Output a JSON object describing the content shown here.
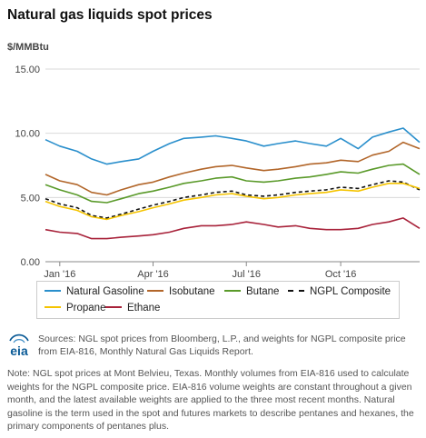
{
  "title": "Natural gas liquids spot prices",
  "unit_label": "$/MMBtu",
  "chart_data": {
    "type": "line",
    "title": "Natural gas liquids spot prices",
    "ylabel": "$/MMBtu",
    "xlabel": "",
    "ylim": [
      0,
      15
    ],
    "yticks": [
      "15.00",
      "10.00",
      "5.00",
      "0.00"
    ],
    "xlim": [
      "2016-01-01",
      "2016-12-31"
    ],
    "xticks": [
      {
        "label": "Jan '16",
        "date": "2016-01-15"
      },
      {
        "label": "Apr '16",
        "date": "2016-04-15"
      },
      {
        "label": "Jul '16",
        "date": "2016-07-15"
      },
      {
        "label": "Oct '16",
        "date": "2016-10-15"
      }
    ],
    "grid": "horizontal",
    "legend_position": "bottom",
    "x": [
      "2016-01-01",
      "2016-01-15",
      "2016-02-01",
      "2016-02-15",
      "2016-03-01",
      "2016-03-15",
      "2016-04-01",
      "2016-04-15",
      "2016-05-01",
      "2016-05-15",
      "2016-06-01",
      "2016-06-15",
      "2016-07-01",
      "2016-07-15",
      "2016-08-01",
      "2016-08-15",
      "2016-09-01",
      "2016-09-15",
      "2016-10-01",
      "2016-10-15",
      "2016-11-01",
      "2016-11-15",
      "2016-12-01",
      "2016-12-15",
      "2016-12-31"
    ],
    "series": [
      {
        "name": "Natural Gasoline",
        "color": "#2a8fcc",
        "dash": "solid",
        "values": [
          9.5,
          9.0,
          8.6,
          8.0,
          7.6,
          7.8,
          8.0,
          8.6,
          9.2,
          9.6,
          9.7,
          9.8,
          9.6,
          9.4,
          9.0,
          9.2,
          9.4,
          9.2,
          9.0,
          9.6,
          8.8,
          9.7,
          10.1,
          10.4,
          9.3
        ]
      },
      {
        "name": "Isobutane",
        "color": "#b2662a",
        "dash": "solid",
        "values": [
          6.8,
          6.3,
          6.0,
          5.4,
          5.2,
          5.6,
          6.0,
          6.2,
          6.6,
          6.9,
          7.2,
          7.4,
          7.5,
          7.3,
          7.1,
          7.2,
          7.4,
          7.6,
          7.7,
          7.9,
          7.8,
          8.3,
          8.6,
          9.3,
          8.8
        ]
      },
      {
        "name": "Butane",
        "color": "#5a9a2a",
        "dash": "solid",
        "values": [
          6.0,
          5.6,
          5.2,
          4.7,
          4.6,
          4.9,
          5.3,
          5.5,
          5.8,
          6.1,
          6.3,
          6.5,
          6.6,
          6.3,
          6.2,
          6.3,
          6.5,
          6.6,
          6.8,
          7.0,
          6.9,
          7.2,
          7.5,
          7.6,
          6.8
        ]
      },
      {
        "name": "NGPL Composite",
        "color": "#111111",
        "dash": "dashed",
        "values": [
          4.9,
          4.5,
          4.2,
          3.6,
          3.4,
          3.7,
          4.1,
          4.4,
          4.7,
          5.0,
          5.2,
          5.4,
          5.5,
          5.2,
          5.1,
          5.2,
          5.4,
          5.5,
          5.6,
          5.8,
          5.7,
          6.0,
          6.3,
          6.2,
          5.6
        ]
      },
      {
        "name": "Propane",
        "color": "#f5c400",
        "dash": "solid",
        "values": [
          4.7,
          4.3,
          4.0,
          3.5,
          3.3,
          3.6,
          3.9,
          4.2,
          4.5,
          4.8,
          5.0,
          5.2,
          5.3,
          5.1,
          4.9,
          5.0,
          5.2,
          5.3,
          5.4,
          5.6,
          5.5,
          5.8,
          6.1,
          6.1,
          5.7
        ]
      },
      {
        "name": "Ethane",
        "color": "#a8223a",
        "dash": "solid",
        "values": [
          2.5,
          2.3,
          2.2,
          1.8,
          1.8,
          1.9,
          2.0,
          2.1,
          2.3,
          2.6,
          2.8,
          2.8,
          2.9,
          3.1,
          2.9,
          2.7,
          2.8,
          2.6,
          2.5,
          2.5,
          2.6,
          2.9,
          3.1,
          3.4,
          2.6
        ]
      }
    ]
  },
  "legend": [
    {
      "label": "Natural Gasoline",
      "color": "#2a8fcc",
      "dash": "solid"
    },
    {
      "label": "Isobutane",
      "color": "#b2662a",
      "dash": "solid"
    },
    {
      "label": "Butane",
      "color": "#5a9a2a",
      "dash": "solid"
    },
    {
      "label": "NGPL Composite",
      "color": "#111111",
      "dash": "dashed"
    },
    {
      "label": "Propane",
      "color": "#f5c400",
      "dash": "solid"
    },
    {
      "label": "Ethane",
      "color": "#a8223a",
      "dash": "solid"
    }
  ],
  "logo": {
    "text": "eia",
    "color": "#0a5a96"
  },
  "sources": "Sources: NGL spot prices from Bloomberg, L.P., and weights for NGPL composite price from EIA-816, Monthly Natural Gas Liquids Report.",
  "note": "Note: NGL spot prices at Mont Belvieu, Texas. Monthly volumes from EIA-816 used to calculate weights for the NGPL composite price. EIA-816 volume weights are constant throughout a given month, and the latest available weights are applied to the three most recent months. Natural gasoline is the term used in the spot and futures markets to describe pentanes and hexanes, the primary components of pentanes plus."
}
